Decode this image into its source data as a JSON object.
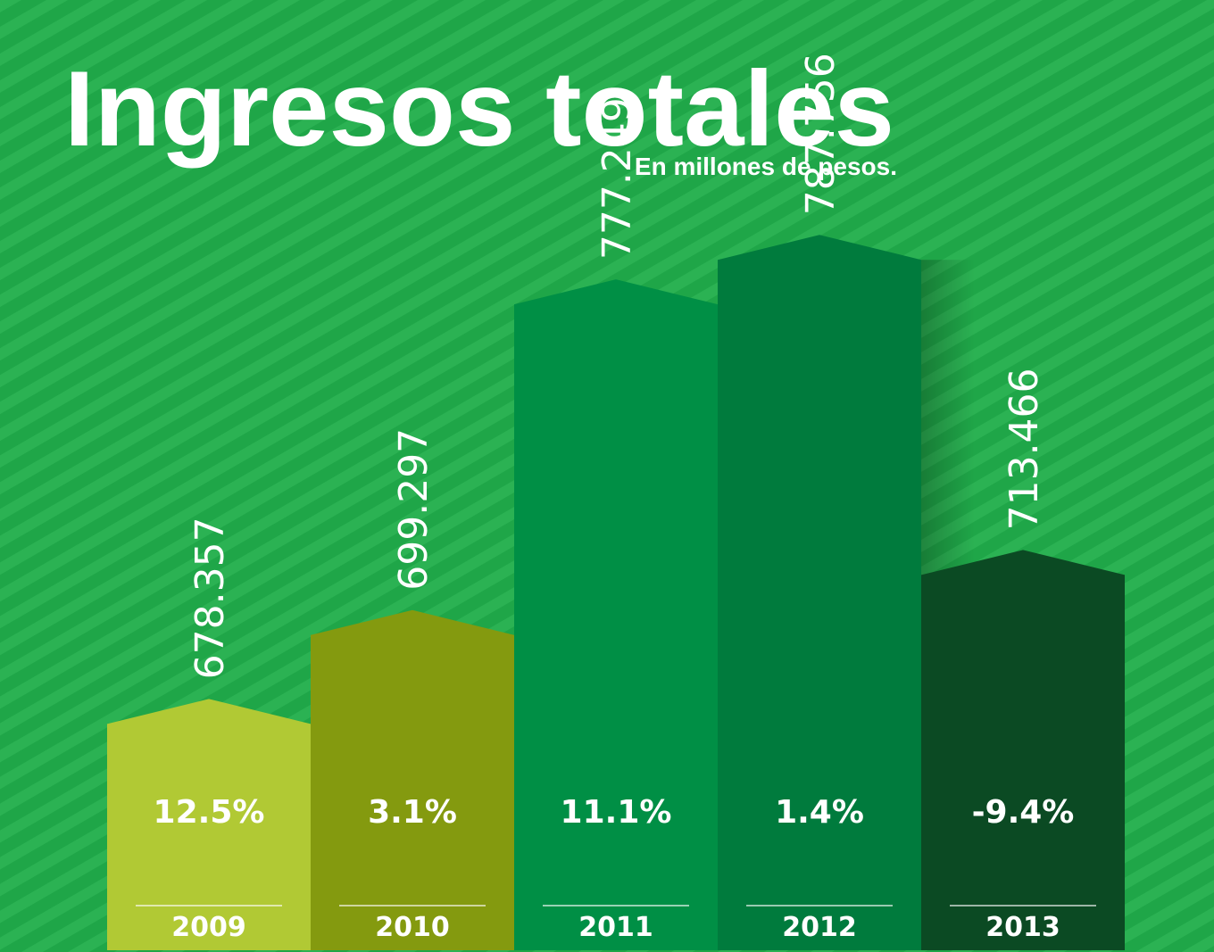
{
  "chart_data": {
    "type": "bar",
    "title": "Ingresos totales",
    "subtitle": "En millones de pesos.",
    "categories": [
      "2009",
      "2010",
      "2011",
      "2012",
      "2013"
    ],
    "values": [
      678357,
      699297,
      777249,
      787756,
      713466
    ],
    "value_labels": [
      "678.357",
      "699.297",
      "777.249",
      "787.756",
      "713.466"
    ],
    "colors": [
      "#b1c934",
      "#849a0f",
      "#008f45",
      "#007b3d",
      "#0b4a23"
    ],
    "growth": {
      "values": [
        12.5,
        3.1,
        11.1,
        1.4,
        -9.4
      ],
      "value_labels": [
        "12.5%",
        "3.1%",
        "11.1%",
        "1.4%",
        "-9.4%"
      ]
    },
    "ylim": [
      625000,
      800000
    ]
  }
}
